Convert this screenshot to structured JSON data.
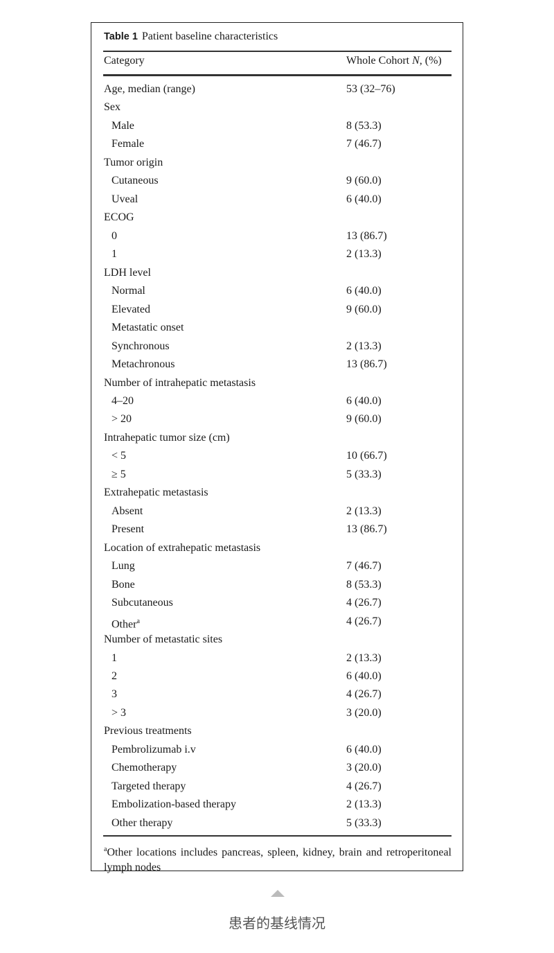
{
  "table": {
    "label": "Table 1",
    "title": "Patient baseline characteristics",
    "columns": [
      "Category",
      "Whole Cohort N, (%)"
    ],
    "rows": [
      {
        "label": "Age, median (range)",
        "value": "53 (32–76)",
        "indent": false
      },
      {
        "label": "Sex",
        "value": "",
        "indent": false
      },
      {
        "label": "Male",
        "value": "8 (53.3)",
        "indent": true
      },
      {
        "label": "Female",
        "value": "7 (46.7)",
        "indent": true
      },
      {
        "label": "Tumor origin",
        "value": "",
        "indent": false
      },
      {
        "label": "Cutaneous",
        "value": "9 (60.0)",
        "indent": true
      },
      {
        "label": "Uveal",
        "value": "6 (40.0)",
        "indent": true
      },
      {
        "label": "ECOG",
        "value": "",
        "indent": false
      },
      {
        "label": "0",
        "value": "13 (86.7)",
        "indent": true
      },
      {
        "label": "1",
        "value": "2 (13.3)",
        "indent": true
      },
      {
        "label": "LDH level",
        "value": "",
        "indent": false
      },
      {
        "label": "Normal",
        "value": "6 (40.0)",
        "indent": true
      },
      {
        "label": "Elevated",
        "value": "9 (60.0)",
        "indent": true
      },
      {
        "label": "Metastatic onset",
        "value": "",
        "indent": true
      },
      {
        "label": "Synchronous",
        "value": "2 (13.3)",
        "indent": true
      },
      {
        "label": "Metachronous",
        "value": "13 (86.7)",
        "indent": true
      },
      {
        "label": "Number of intrahepatic metastasis",
        "value": "",
        "indent": false
      },
      {
        "label": "4–20",
        "value": "6 (40.0)",
        "indent": true
      },
      {
        "label": "> 20",
        "value": "9 (60.0)",
        "indent": true
      },
      {
        "label": "Intrahepatic tumor size (cm)",
        "value": "",
        "indent": false
      },
      {
        "label": "< 5",
        "value": "10 (66.7)",
        "indent": true
      },
      {
        "label": "≥ 5",
        "value": "5 (33.3)",
        "indent": true
      },
      {
        "label": "Extrahepatic metastasis",
        "value": "",
        "indent": false
      },
      {
        "label": "Absent",
        "value": "2 (13.3)",
        "indent": true
      },
      {
        "label": "Present",
        "value": "13 (86.7)",
        "indent": true
      },
      {
        "label": "Location of extrahepatic metastasis",
        "value": "",
        "indent": false
      },
      {
        "label": "Lung",
        "value": "7 (46.7)",
        "indent": true
      },
      {
        "label": "Bone",
        "value": "8 (53.3)",
        "indent": true
      },
      {
        "label": "Subcutaneous",
        "value": "4 (26.7)",
        "indent": true
      },
      {
        "label": "Other",
        "sup": "a",
        "value": "4 (26.7)",
        "indent": true
      },
      {
        "label": "Number of metastatic sites",
        "value": "",
        "indent": false
      },
      {
        "label": "1",
        "value": "2 (13.3)",
        "indent": true
      },
      {
        "label": "2",
        "value": "6 (40.0)",
        "indent": true
      },
      {
        "label": "3",
        "value": "4 (26.7)",
        "indent": true
      },
      {
        "label": "> 3",
        "value": "3 (20.0)",
        "indent": true
      },
      {
        "label": "Previous treatments",
        "value": "",
        "indent": false
      },
      {
        "label": "Pembrolizumab i.v",
        "value": "6 (40.0)",
        "indent": true
      },
      {
        "label": "Chemotherapy",
        "value": "3 (20.0)",
        "indent": true
      },
      {
        "label": "Targeted therapy",
        "value": "4 (26.7)",
        "indent": true
      },
      {
        "label": "Embolization-based therapy",
        "value": "2 (13.3)",
        "indent": true
      },
      {
        "label": "Other therapy",
        "value": "5 (33.3)",
        "indent": true
      }
    ],
    "footnote_mark": "a",
    "footnote": "Other locations includes pancreas, spleen, kidney, brain and retroperitoneal lymph nodes"
  },
  "caption": "患者的基线情况"
}
